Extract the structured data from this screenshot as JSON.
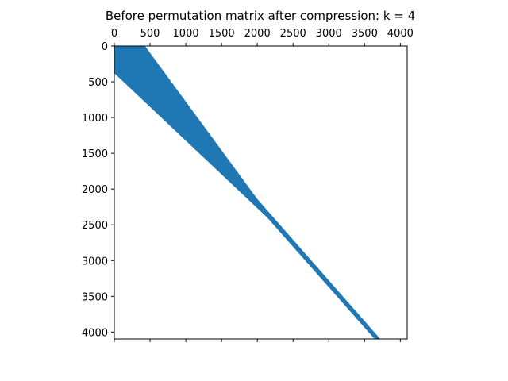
{
  "chart_data": {
    "type": "spy",
    "title": "Before permutation matrix after compression: k = 4",
    "xlabel": "",
    "ylabel": "",
    "xlim": [
      0,
      4096
    ],
    "ylim": [
      4096,
      0
    ],
    "x_axis_position": "top",
    "y_axis_inverted": true,
    "grid": false,
    "xticks": [
      0,
      500,
      1000,
      1500,
      2000,
      2500,
      3000,
      3500,
      4000
    ],
    "yticks": [
      0,
      500,
      1000,
      1500,
      2000,
      2500,
      3000,
      3500,
      4000
    ],
    "series": [
      {
        "color": "#1f77b4",
        "band_upper_edge": [
          [
            0,
            430
          ],
          [
            2140,
            2000
          ],
          [
            4096,
            3720
          ]
        ],
        "band_lower_edge": [
          [
            0,
            380
          ],
          [
            2140,
            2400
          ],
          [
            4096,
            4096
          ]
        ],
        "band_lower_right_corner": [
          [
            3640,
            4096
          ],
          [
            4096,
            4096
          ]
        ]
      }
    ]
  }
}
